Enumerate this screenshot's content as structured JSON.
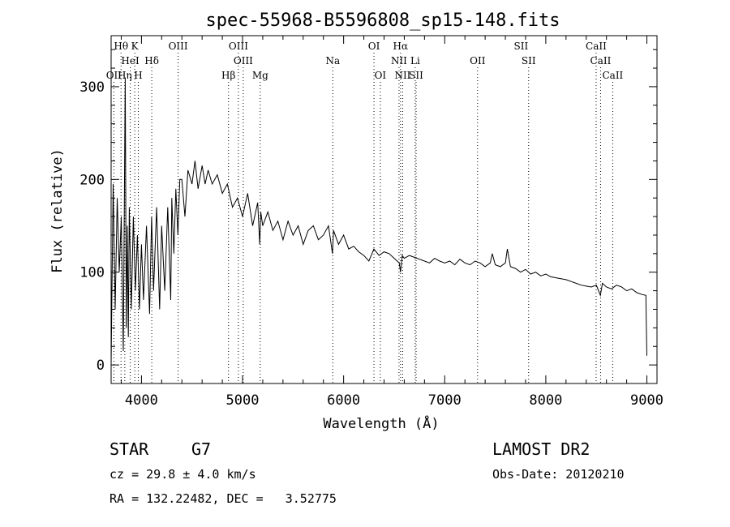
{
  "chart_data": {
    "type": "line",
    "title": "spec-55968-B5596808_sp15-148.fits",
    "xlabel": "Wavelength (Å)",
    "ylabel": "Flux (relative)",
    "xlim": [
      3700,
      9100
    ],
    "ylim": [
      -20,
      355
    ],
    "xticks": [
      4000,
      5000,
      6000,
      7000,
      8000,
      9000
    ],
    "yticks": [
      0,
      100,
      200,
      300
    ],
    "grid": false,
    "series": [
      {
        "x": [
          3700,
          3720,
          3740,
          3760,
          3780,
          3800,
          3820,
          3840,
          3850,
          3860,
          3870,
          3880,
          3900,
          3920,
          3940,
          3960,
          3980,
          4000,
          4020,
          4050,
          4080,
          4100,
          4120,
          4150,
          4180,
          4200,
          4230,
          4260,
          4290,
          4300,
          4320,
          4340,
          4360,
          4380,
          4400,
          4430,
          4460,
          4500,
          4530,
          4560,
          4600,
          4630,
          4660,
          4700,
          4750,
          4800,
          4850,
          4900,
          4950,
          5000,
          5050,
          5100,
          5150,
          5170,
          5180,
          5200,
          5250,
          5300,
          5350,
          5400,
          5450,
          5500,
          5550,
          5600,
          5650,
          5700,
          5750,
          5800,
          5850,
          5890,
          5900,
          5950,
          6000,
          6050,
          6100,
          6150,
          6200,
          6250,
          6300,
          6350,
          6400,
          6450,
          6500,
          6550,
          6563,
          6580,
          6600,
          6650,
          6700,
          6750,
          6800,
          6850,
          6900,
          6950,
          7000,
          7050,
          7100,
          7150,
          7200,
          7250,
          7300,
          7350,
          7400,
          7450,
          7470,
          7500,
          7550,
          7600,
          7620,
          7650,
          7700,
          7750,
          7800,
          7850,
          7900,
          7950,
          8000,
          8050,
          8100,
          8150,
          8200,
          8250,
          8300,
          8350,
          8400,
          8450,
          8500,
          8540,
          8560,
          8600,
          8650,
          8700,
          8750,
          8800,
          8850,
          8900,
          8950,
          8990,
          8995,
          9000
        ],
        "y": [
          0,
          195,
          60,
          180,
          100,
          160,
          15,
          310,
          40,
          150,
          30,
          170,
          60,
          160,
          80,
          140,
          60,
          130,
          70,
          150,
          55,
          160,
          80,
          170,
          60,
          150,
          80,
          170,
          70,
          180,
          120,
          190,
          140,
          200,
          200,
          160,
          210,
          195,
          220,
          190,
          215,
          195,
          210,
          195,
          205,
          185,
          195,
          170,
          180,
          160,
          185,
          150,
          175,
          130,
          165,
          150,
          165,
          145,
          155,
          135,
          155,
          140,
          150,
          130,
          145,
          150,
          135,
          140,
          150,
          120,
          145,
          130,
          140,
          125,
          128,
          122,
          118,
          112,
          125,
          118,
          122,
          120,
          115,
          110,
          100,
          118,
          115,
          118,
          116,
          114,
          112,
          110,
          115,
          112,
          110,
          112,
          108,
          114,
          110,
          108,
          112,
          110,
          106,
          110,
          120,
          108,
          106,
          110,
          125,
          106,
          104,
          100,
          103,
          98,
          100,
          96,
          98,
          95,
          94,
          93,
          92,
          90,
          88,
          86,
          85,
          84,
          86,
          75,
          88,
          84,
          82,
          86,
          84,
          80,
          82,
          78,
          76,
          75,
          40,
          10
        ]
      }
    ],
    "line_labels": [
      {
        "label": "Hθ",
        "x": 3798,
        "row": 1,
        "ticked": true
      },
      {
        "label": "K",
        "x": 3934,
        "row": 1,
        "ticked": true
      },
      {
        "label": "OIII",
        "x": 4363,
        "row": 1,
        "ticked": true
      },
      {
        "label": "OIII",
        "x": 4959,
        "row": 1,
        "ticked": true
      },
      {
        "label": "OI",
        "x": 6300,
        "row": 1,
        "ticked": true
      },
      {
        "label": "Hα",
        "x": 6563,
        "row": 1,
        "ticked": true
      },
      {
        "label": "SII",
        "x": 7755,
        "row": 1,
        "ticked": false
      },
      {
        "label": "CaII",
        "x": 8498,
        "row": 1,
        "ticked": true
      },
      {
        "label": "HeI",
        "x": 3889,
        "row": 2,
        "ticked": true
      },
      {
        "label": "Hδ",
        "x": 4102,
        "row": 2,
        "ticked": true
      },
      {
        "label": "OIII",
        "x": 5007,
        "row": 2,
        "ticked": true
      },
      {
        "label": "Na",
        "x": 5893,
        "row": 2,
        "ticked": true
      },
      {
        "label": "NII",
        "x": 6548,
        "row": 2,
        "ticked": true
      },
      {
        "label": "Li",
        "x": 6708,
        "row": 2,
        "ticked": true
      },
      {
        "label": "OII",
        "x": 7325,
        "row": 2,
        "ticked": true
      },
      {
        "label": "SII",
        "x": 7830,
        "row": 2,
        "ticked": true
      },
      {
        "label": "CaII",
        "x": 8542,
        "row": 2,
        "ticked": true
      },
      {
        "label": "OII",
        "x": 3727,
        "row": 3,
        "ticked": true
      },
      {
        "label": "Hη",
        "x": 3835,
        "row": 3,
        "ticked": true
      },
      {
        "label": "H",
        "x": 3969,
        "row": 3,
        "ticked": true
      },
      {
        "label": "Hβ",
        "x": 4861,
        "row": 3,
        "ticked": true
      },
      {
        "label": "Mg",
        "x": 5175,
        "row": 3,
        "ticked": true
      },
      {
        "label": "OI",
        "x": 6363,
        "row": 3,
        "ticked": true
      },
      {
        "label": "NII",
        "x": 6584,
        "row": 3,
        "ticked": true
      },
      {
        "label": "SII",
        "x": 6717,
        "row": 3,
        "ticked": true
      },
      {
        "label": "CaII",
        "x": 8662,
        "row": 3,
        "ticked": true
      }
    ]
  },
  "info": {
    "class": "STAR",
    "subclass": "G7",
    "survey": "LAMOST DR2",
    "cz": "cz = 29.8 ± 4.0 km/s",
    "obs_date": "Obs-Date: 20120210",
    "coords": "RA = 132.22482, DEC =   3.52775"
  }
}
